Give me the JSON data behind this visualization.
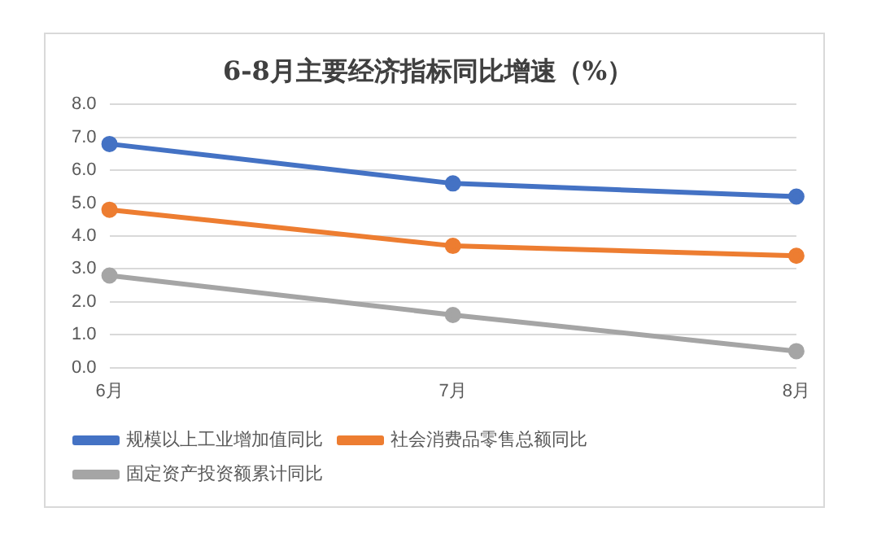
{
  "chart_data": {
    "type": "line",
    "title": "6-8月主要经济指标同比增速（%）",
    "categories": [
      "6月",
      "7月",
      "8月"
    ],
    "series": [
      {
        "name": "规模以上工业增加值同比",
        "color": "#4472c4",
        "values": [
          6.8,
          5.6,
          5.2
        ]
      },
      {
        "name": "社会消费品零售总额同比",
        "color": "#ed7d31",
        "values": [
          4.8,
          3.7,
          3.4
        ]
      },
      {
        "name": "固定资产投资额累计同比",
        "color": "#a5a5a5",
        "values": [
          2.8,
          1.6,
          0.5
        ]
      }
    ],
    "ylim": [
      0,
      8
    ],
    "yticks": [
      {
        "value": 0,
        "label": "0.0"
      },
      {
        "value": 1,
        "label": "1.0"
      },
      {
        "value": 2,
        "label": "2.0"
      },
      {
        "value": 3,
        "label": "3.0"
      },
      {
        "value": 4,
        "label": "4.0"
      },
      {
        "value": 5,
        "label": "5.0"
      },
      {
        "value": 6,
        "label": "6.0"
      },
      {
        "value": 7,
        "label": "7.0"
      },
      {
        "value": 8,
        "label": "8.0"
      }
    ],
    "grid": "y",
    "legend": "bottom",
    "marker": "circle",
    "line_style": "solid"
  }
}
